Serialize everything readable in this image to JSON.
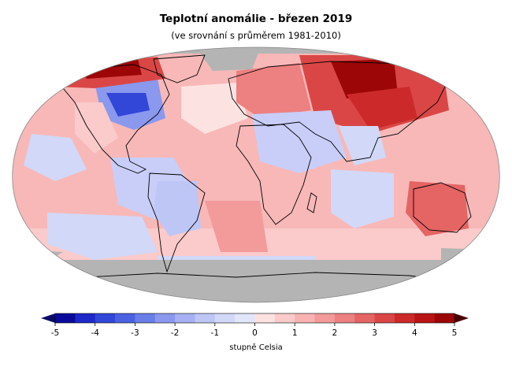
{
  "title": "Teplotní anomálie - březen 2019",
  "subtitle": "(ve srovnání s průměrem 1981-2010)",
  "legend": {
    "unit_label": "stupně Celsia",
    "ticks": [
      "-5",
      "-4",
      "-3",
      "-2",
      "-1",
      "0",
      "1",
      "2",
      "3",
      "4",
      "5"
    ],
    "min": -5,
    "max": 5,
    "colors": [
      "#0a0a9a",
      "#1e28c8",
      "#3246d8",
      "#4a62e2",
      "#6a7ee8",
      "#8a98ee",
      "#a6b0f2",
      "#bec6f6",
      "#d2d8f8",
      "#e2e6fb",
      "#fde2e2",
      "#fbcaca",
      "#f8b2b2",
      "#f39a9a",
      "#ed8080",
      "#e56464",
      "#da4646",
      "#cc2a2a",
      "#b81414",
      "#9c0606"
    ],
    "low_extreme_color": "#0a0a6a",
    "high_extreme_color": "#4a0000"
  },
  "map_colors": {
    "no_data": "#b4b4b4",
    "outline": "#000000"
  }
}
